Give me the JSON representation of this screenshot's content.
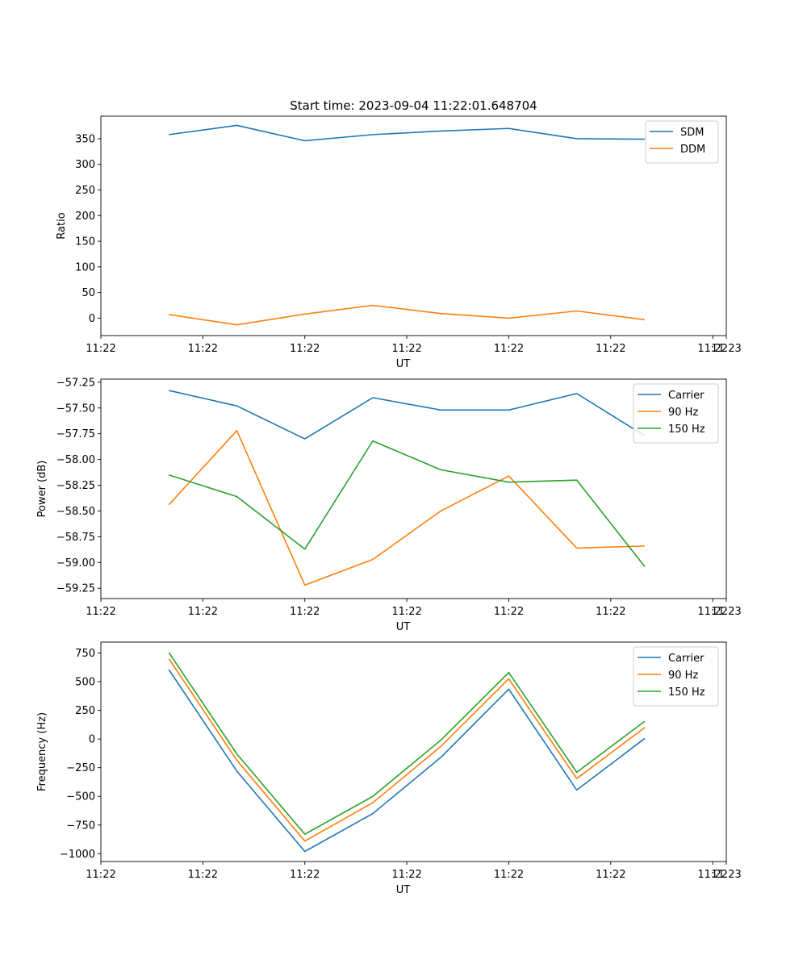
{
  "figure_title": "Start time: 2023-09-04 11:22:01.648704",
  "colors": {
    "c0": "#1f77b4",
    "c1": "#ff7f0e",
    "c2": "#2ca02c",
    "axis": "#000000",
    "background": "#ffffff"
  },
  "chart_data": [
    {
      "type": "line",
      "title": "Start time: 2023-09-04 11:22:01.648704",
      "xlabel": "UT",
      "ylabel": "Ratio",
      "x": [
        1,
        2,
        3,
        4,
        5,
        6,
        7,
        8
      ],
      "xlim": [
        0,
        9.2
      ],
      "x_ticks": [
        0,
        1.5,
        3,
        4.5,
        6,
        7.5,
        9
      ],
      "x_tick_labels": [
        "11:22",
        "11:22",
        "11:22",
        "11:22",
        "11:22",
        "11:22",
        "11:22"
      ],
      "extra_tick": {
        "x": 9.2,
        "label": "11:23"
      },
      "ylim": [
        -34,
        394
      ],
      "y_ticks": [
        0,
        50,
        100,
        150,
        200,
        250,
        300,
        350
      ],
      "y_tick_labels": [
        "0",
        "50",
        "100",
        "150",
        "200",
        "250",
        "300",
        "350"
      ],
      "legend": "top-right",
      "series": [
        {
          "name": "SDM",
          "color": "#1f77b4",
          "values": [
            358,
            376,
            346,
            358,
            365,
            370,
            350,
            349
          ]
        },
        {
          "name": "DDM",
          "color": "#ff7f0e",
          "values": [
            7,
            -13,
            8,
            25,
            9,
            0,
            14,
            -3
          ]
        }
      ]
    },
    {
      "type": "line",
      "title": "",
      "xlabel": "UT",
      "ylabel": "Power (dB)",
      "x": [
        1,
        2,
        3,
        4,
        5,
        6,
        7,
        8
      ],
      "xlim": [
        0,
        9.2
      ],
      "x_ticks": [
        0,
        1.5,
        3,
        4.5,
        6,
        7.5,
        9
      ],
      "x_tick_labels": [
        "11:22",
        "11:22",
        "11:22",
        "11:22",
        "11:22",
        "11:22",
        "11:22"
      ],
      "extra_tick": {
        "x": 9.2,
        "label": "11:23"
      },
      "ylim": [
        -59.35,
        -57.22
      ],
      "y_ticks": [
        -57.25,
        -57.5,
        -57.75,
        -58.0,
        -58.25,
        -58.5,
        -58.75,
        -59.0,
        -59.25
      ],
      "y_tick_labels": [
        "−57.25",
        "−57.50",
        "−57.75",
        "−58.00",
        "−58.25",
        "−58.50",
        "−58.75",
        "−59.00",
        "−59.25"
      ],
      "legend": "top-right",
      "series": [
        {
          "name": "Carrier",
          "color": "#1f77b4",
          "values": [
            -57.33,
            -57.48,
            -57.8,
            -57.4,
            -57.52,
            -57.52,
            -57.36,
            -57.77
          ]
        },
        {
          "name": "90 Hz",
          "color": "#ff7f0e",
          "values": [
            -58.44,
            -57.72,
            -59.22,
            -58.97,
            -58.5,
            -58.16,
            -58.86,
            -58.84
          ]
        },
        {
          "name": "150 Hz",
          "color": "#2ca02c",
          "values": [
            -58.15,
            -58.36,
            -58.87,
            -57.82,
            -58.1,
            -58.22,
            -58.2,
            -59.04
          ]
        }
      ]
    },
    {
      "type": "line",
      "title": "",
      "xlabel": "UT",
      "ylabel": "Frequency (Hz)",
      "x": [
        1,
        2,
        3,
        4,
        5,
        6,
        7,
        8
      ],
      "xlim": [
        0,
        9.2
      ],
      "x_ticks": [
        0,
        1.5,
        3,
        4.5,
        6,
        7.5,
        9
      ],
      "x_tick_labels": [
        "11:22",
        "11:22",
        "11:22",
        "11:22",
        "11:22",
        "11:22",
        "11:22"
      ],
      "extra_tick": {
        "x": 9.2,
        "label": "11:23"
      },
      "ylim": [
        -1068,
        845
      ],
      "y_ticks": [
        750,
        500,
        250,
        0,
        -250,
        -500,
        -750,
        -1000
      ],
      "y_tick_labels": [
        "750",
        "500",
        "250",
        "0",
        "−250",
        "−500",
        "−750",
        "−1000"
      ],
      "legend": "top-right",
      "series": [
        {
          "name": "Carrier",
          "color": "#1f77b4",
          "values": [
            605,
            -280,
            -980,
            -650,
            -160,
            435,
            -445,
            5
          ]
        },
        {
          "name": "90 Hz",
          "color": "#ff7f0e",
          "values": [
            700,
            -185,
            -890,
            -555,
            -65,
            525,
            -345,
            100
          ]
        },
        {
          "name": "150 Hz",
          "color": "#2ca02c",
          "values": [
            755,
            -130,
            -830,
            -500,
            -10,
            580,
            -290,
            155
          ]
        }
      ]
    }
  ]
}
